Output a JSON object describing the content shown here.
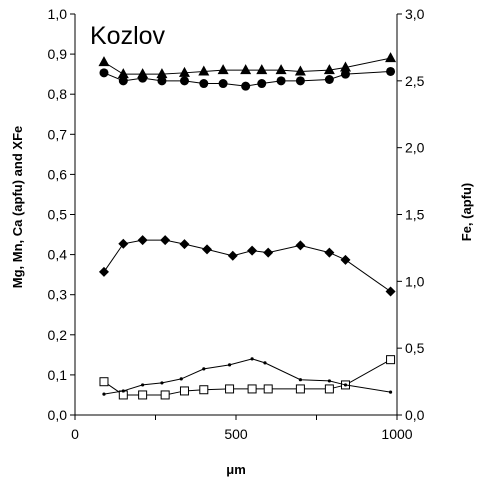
{
  "chart_data": {
    "type": "line",
    "title": "Kozlov",
    "xlabel": "μm",
    "ylabel_left": "Mg, Mn, Ca (apfu) and XFe",
    "ylabel_right": "Fe, (apfu)",
    "xlim": [
      0,
      1000
    ],
    "ylim_left": [
      0,
      1.0
    ],
    "ylim_right": [
      0,
      3.0
    ],
    "x_ticks": [
      "0",
      "500",
      "1000"
    ],
    "y_left_ticks": [
      "0,0",
      "0,1",
      "0,2",
      "0,3",
      "0,4",
      "0,5",
      "0,6",
      "0,7",
      "0,8",
      "0,9",
      "1,0"
    ],
    "y_right_ticks": [
      "0,0",
      "0,5",
      "1,0",
      "1,5",
      "2,0",
      "2,5",
      "3,0"
    ],
    "grid": false,
    "series": [
      {
        "marker": "triangle",
        "axis": "right",
        "x": [
          90,
          150,
          210,
          270,
          340,
          400,
          460,
          530,
          580,
          640,
          700,
          790,
          840,
          980
        ],
        "y": [
          2.64,
          2.55,
          2.55,
          2.55,
          2.56,
          2.57,
          2.58,
          2.58,
          2.58,
          2.58,
          2.57,
          2.58,
          2.6,
          2.67
        ]
      },
      {
        "marker": "circle",
        "axis": "right",
        "x": [
          90,
          150,
          210,
          270,
          340,
          400,
          460,
          530,
          580,
          640,
          700,
          790,
          840,
          980
        ],
        "y": [
          2.56,
          2.5,
          2.52,
          2.5,
          2.5,
          2.48,
          2.48,
          2.46,
          2.48,
          2.5,
          2.5,
          2.51,
          2.55,
          2.57
        ]
      },
      {
        "marker": "diamond",
        "axis": "left",
        "x": [
          90,
          150,
          210,
          280,
          340,
          410,
          490,
          550,
          600,
          700,
          790,
          840,
          980
        ],
        "y": [
          0.357,
          0.427,
          0.436,
          0.436,
          0.426,
          0.413,
          0.397,
          0.41,
          0.405,
          0.423,
          0.405,
          0.387,
          0.308
        ]
      },
      {
        "marker": "open-square",
        "axis": "left",
        "x": [
          90,
          150,
          210,
          280,
          340,
          400,
          480,
          550,
          600,
          700,
          790,
          840,
          980
        ],
        "y": [
          0.083,
          0.05,
          0.05,
          0.05,
          0.06,
          0.063,
          0.065,
          0.065,
          0.065,
          0.065,
          0.065,
          0.075,
          0.138
        ]
      },
      {
        "marker": "small-dot",
        "axis": "left",
        "x": [
          90,
          150,
          210,
          270,
          330,
          400,
          480,
          550,
          590,
          700,
          790,
          840,
          980
        ],
        "y": [
          0.052,
          0.06,
          0.075,
          0.08,
          0.09,
          0.115,
          0.125,
          0.14,
          0.13,
          0.088,
          0.085,
          0.075,
          0.057
        ]
      }
    ]
  }
}
